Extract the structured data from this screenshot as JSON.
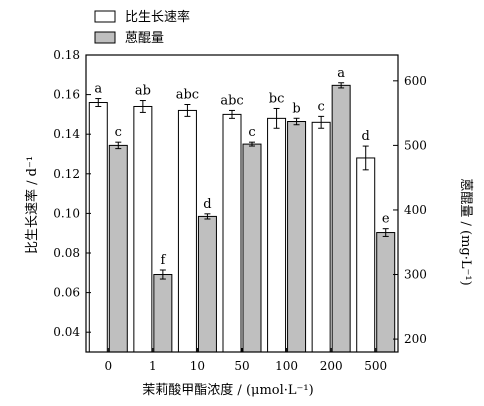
{
  "chart_data": {
    "type": "bar",
    "categories": [
      "0",
      "1",
      "10",
      "50",
      "100",
      "200",
      "500"
    ],
    "xlabel": "茉莉酸甲酯浓度 / (μmol·L⁻¹)",
    "ylabel_left": "比生长速率 / d⁻¹",
    "ylabel_right": "蒽醌量 / (mg·L⁻¹)",
    "ylim_left": [
      0.03,
      0.18
    ],
    "yticks_left": [
      "0.04",
      "0.06",
      "0.08",
      "0.10",
      "0.12",
      "0.14",
      "0.16",
      "0.18"
    ],
    "ylim_right": [
      180,
      640
    ],
    "yticks_right": [
      "200",
      "300",
      "400",
      "500",
      "600"
    ],
    "legend_position": "top-left",
    "series": [
      {
        "name": "比生长速率",
        "axis": "left",
        "fill": "#ffffff",
        "values": [
          0.156,
          0.154,
          0.152,
          0.15,
          0.148,
          0.146,
          0.128
        ],
        "errors": [
          0.002,
          0.003,
          0.003,
          0.002,
          0.005,
          0.003,
          0.006
        ],
        "labels": [
          "a",
          "ab",
          "abc",
          "abc",
          "bc",
          "c",
          "d"
        ]
      },
      {
        "name": "蒽醌量",
        "axis": "right",
        "fill": "#bfbfbf",
        "values": [
          500,
          300,
          390,
          502,
          537,
          593,
          365
        ],
        "errors": [
          5,
          7,
          4,
          3,
          5,
          4,
          6
        ],
        "labels": [
          "c",
          "f",
          "d",
          "c",
          "b",
          "a",
          "e"
        ]
      }
    ]
  }
}
